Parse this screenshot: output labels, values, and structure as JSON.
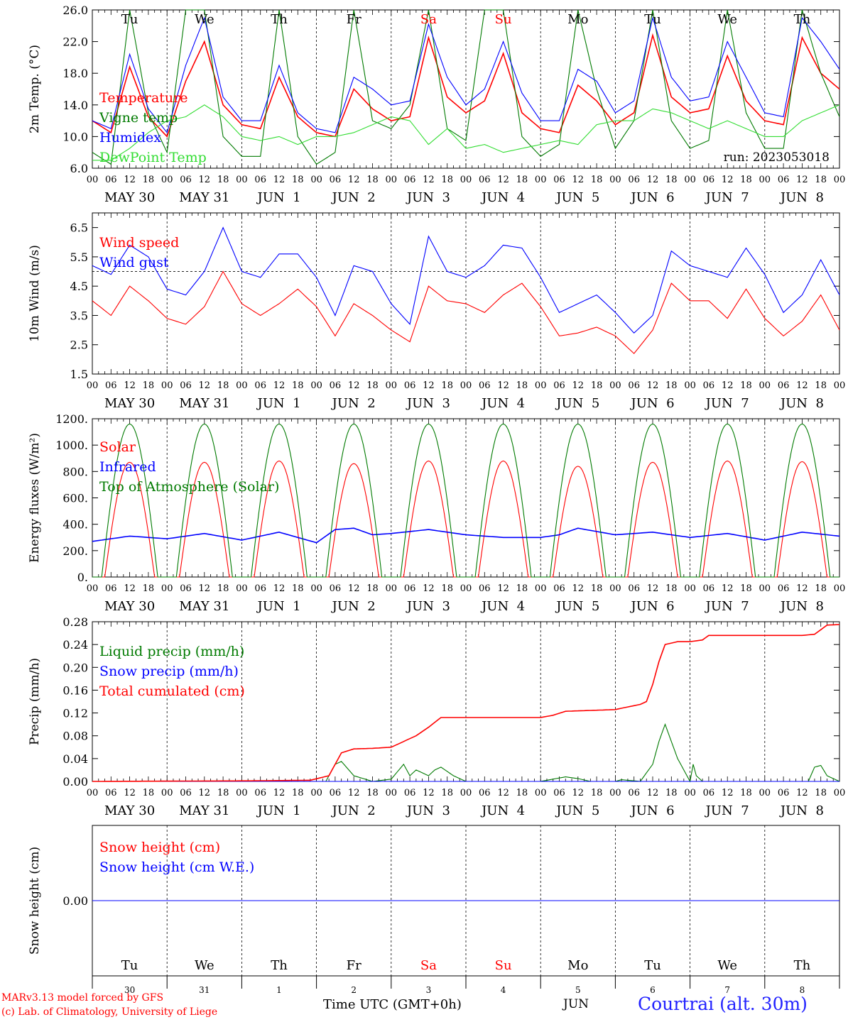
{
  "days": {
    "names": [
      "Tu",
      "We",
      "Th",
      "Fr",
      "Sa",
      "Su",
      "Mo",
      "Tu",
      "We",
      "Th"
    ],
    "dates": [
      "MAY 30",
      "MAY 31",
      "JUN  1",
      "JUN  2",
      "JUN  3",
      "JUN  4",
      "JUN  5",
      "JUN  6",
      "JUN  7",
      "JUN  8"
    ],
    "nums": [
      "30",
      "31",
      "1",
      "2",
      "3",
      "4",
      "5",
      "6",
      "7",
      "8"
    ],
    "weekend_color": "#ff0000",
    "weekend_idx": [
      4,
      5
    ]
  },
  "hour_ticks": [
    "00",
    "06",
    "12",
    "18"
  ],
  "footer": {
    "credit1": "MARv3.13 model forced by GFS",
    "credit2": "(c) Lab. of Climatology, University of Liege",
    "time_label": "Time UTC (GMT+0h)",
    "month_label": "JUN",
    "station": "Courtrai (alt. 30m)"
  },
  "chart_data": [
    {
      "type": "line",
      "panel": "temperature",
      "ylabel": "2m Temp. (°C)",
      "ylim": [
        6,
        26
      ],
      "yticks": [
        "6.0",
        "10.0",
        "14.0",
        "18.0",
        "22.0",
        "26.0"
      ],
      "run_label": "run: 2023053018",
      "x_unit": "hours since MAY 30 00 UTC",
      "series": [
        {
          "name": "Temperature",
          "color": "#ff0000",
          "x": [
            0,
            6,
            12,
            18,
            24,
            30,
            36,
            42,
            48,
            54,
            60,
            66,
            72,
            78,
            84,
            90,
            96,
            102,
            108,
            114,
            120,
            126,
            132,
            138,
            144,
            150,
            156,
            162,
            168,
            174,
            180,
            186,
            192,
            198,
            204,
            210,
            216,
            222,
            228,
            234,
            240
          ],
          "y": [
            12.0,
            10.5,
            18.8,
            12.5,
            10.0,
            17.0,
            22.0,
            14.0,
            11.5,
            11.0,
            17.5,
            12.5,
            10.5,
            10.0,
            16.0,
            13.5,
            12.0,
            12.5,
            22.5,
            15.0,
            13.0,
            14.5,
            20.5,
            13.0,
            11.0,
            10.5,
            16.5,
            14.5,
            11.5,
            13.0,
            22.8,
            15.0,
            13.0,
            13.5,
            20.2,
            14.5,
            12.0,
            11.5,
            22.5,
            18.0,
            16.0
          ]
        },
        {
          "name": "Vigne temp",
          "color": "#007a00",
          "x": [
            0,
            6,
            12,
            18,
            24,
            30,
            36,
            42,
            48,
            54,
            60,
            66,
            72,
            78,
            84,
            90,
            96,
            102,
            108,
            114,
            120,
            126,
            132,
            138,
            144,
            150,
            156,
            162,
            168,
            174,
            180,
            186,
            192,
            198,
            204,
            210,
            216,
            222,
            228,
            234,
            240
          ],
          "y": [
            8.0,
            6.5,
            26.0,
            13.0,
            8.0,
            26.0,
            26.0,
            10.0,
            7.5,
            7.5,
            26.0,
            10.0,
            6.5,
            8.0,
            26.0,
            12.0,
            11.0,
            14.0,
            26.0,
            11.0,
            9.5,
            26.0,
            26.0,
            10.0,
            7.5,
            9.0,
            26.0,
            16.0,
            8.5,
            12.0,
            26.0,
            12.0,
            8.5,
            9.5,
            26.0,
            13.0,
            8.5,
            8.5,
            26.0,
            18.0,
            12.5
          ]
        },
        {
          "name": "Humidex",
          "color": "#0000ff",
          "x": [
            0,
            6,
            12,
            18,
            24,
            30,
            36,
            42,
            48,
            54,
            60,
            66,
            72,
            78,
            84,
            90,
            96,
            102,
            108,
            114,
            120,
            126,
            132,
            138,
            144,
            150,
            156,
            162,
            168,
            174,
            180,
            186,
            192,
            198,
            204,
            210,
            216,
            222,
            228,
            234,
            240
          ],
          "y": [
            12.0,
            11.0,
            20.4,
            13.5,
            10.5,
            19.0,
            25.0,
            15.0,
            12.0,
            12.0,
            19.0,
            13.0,
            11.0,
            10.5,
            17.5,
            16.0,
            14.0,
            14.5,
            24.2,
            17.5,
            14.0,
            16.0,
            22.0,
            15.5,
            12.0,
            12.0,
            18.5,
            17.0,
            13.0,
            14.5,
            25.0,
            17.5,
            14.5,
            15.0,
            22.0,
            17.5,
            13.0,
            12.5,
            25.0,
            22.0,
            18.5
          ]
        },
        {
          "name": "DewPoint Temp",
          "color": "#33dd33",
          "x": [
            0,
            6,
            12,
            18,
            24,
            30,
            36,
            42,
            48,
            54,
            60,
            66,
            72,
            78,
            84,
            90,
            96,
            102,
            108,
            114,
            120,
            126,
            132,
            138,
            144,
            150,
            156,
            162,
            168,
            174,
            180,
            186,
            192,
            198,
            204,
            210,
            216,
            222,
            228,
            234,
            240
          ],
          "y": [
            7.0,
            7.0,
            8.5,
            10.5,
            12.0,
            12.5,
            14.0,
            12.5,
            10.0,
            9.5,
            10.0,
            9.0,
            10.0,
            10.0,
            10.5,
            11.5,
            12.5,
            12.0,
            9.0,
            11.0,
            8.5,
            9.0,
            8.0,
            8.5,
            9.0,
            9.5,
            9.0,
            11.5,
            12.0,
            12.0,
            13.5,
            13.0,
            12.0,
            11.0,
            12.0,
            11.0,
            10.0,
            10.0,
            12.0,
            13.0,
            14.0
          ]
        }
      ]
    },
    {
      "type": "line",
      "panel": "wind",
      "ylabel": "10m Wind (m/s)",
      "ylim": [
        1.5,
        7.0
      ],
      "yticks": [
        "1.5",
        "2.5",
        "3.5",
        "4.5",
        "5.5",
        "6.5"
      ],
      "reference_line": 5.0,
      "x_unit": "hours since MAY 30 00 UTC",
      "series": [
        {
          "name": "Wind speed",
          "color": "#ff0000",
          "x": [
            0,
            6,
            12,
            18,
            24,
            30,
            36,
            42,
            48,
            54,
            60,
            66,
            72,
            78,
            84,
            90,
            96,
            102,
            108,
            114,
            120,
            126,
            132,
            138,
            144,
            150,
            156,
            162,
            168,
            174,
            180,
            186,
            192,
            198,
            204,
            210,
            216,
            222,
            228,
            234,
            240
          ],
          "y": [
            4.0,
            3.5,
            4.5,
            4.0,
            3.4,
            3.2,
            3.8,
            5.0,
            3.9,
            3.5,
            3.9,
            4.4,
            3.8,
            2.8,
            3.9,
            3.5,
            3.0,
            2.6,
            4.5,
            4.0,
            3.9,
            3.6,
            4.2,
            4.6,
            3.8,
            2.8,
            2.9,
            3.1,
            2.8,
            2.2,
            3.0,
            4.6,
            4.0,
            4.0,
            3.4,
            4.4,
            3.4,
            2.8,
            3.3,
            4.2,
            3.0
          ]
        },
        {
          "name": "Wind gust",
          "color": "#0000ff",
          "x": [
            0,
            6,
            12,
            18,
            24,
            30,
            36,
            42,
            48,
            54,
            60,
            66,
            72,
            78,
            84,
            90,
            96,
            102,
            108,
            114,
            120,
            126,
            132,
            138,
            144,
            150,
            156,
            162,
            168,
            174,
            180,
            186,
            192,
            198,
            204,
            210,
            216,
            222,
            228,
            234,
            240
          ],
          "y": [
            5.2,
            4.9,
            5.9,
            5.5,
            4.4,
            4.2,
            5.0,
            6.5,
            5.0,
            4.8,
            5.6,
            5.6,
            4.8,
            3.5,
            5.2,
            5.0,
            3.9,
            3.2,
            6.2,
            5.0,
            4.8,
            5.2,
            5.9,
            5.8,
            4.8,
            3.6,
            3.9,
            4.2,
            3.6,
            2.9,
            3.5,
            5.7,
            5.2,
            5.0,
            4.8,
            5.8,
            4.9,
            3.6,
            4.2,
            5.4,
            4.2
          ]
        }
      ]
    },
    {
      "type": "line",
      "panel": "energy",
      "ylabel": "Energy fluxes (W/m²)",
      "ylim": [
        0,
        1200
      ],
      "yticks": [
        "0.",
        "200.",
        "400.",
        "600.",
        "800.",
        "1000.",
        "1200."
      ],
      "x_unit": "hours since MAY 30 00 UTC",
      "series": [
        {
          "name": "Solar",
          "color": "#ff0000",
          "peaks": [
            870,
            870,
            880,
            860,
            880,
            880,
            840,
            870,
            880,
            875
          ],
          "sunrise_h": 4,
          "sunset_h": 20
        },
        {
          "name": "Infrared",
          "color": "#0000ff",
          "x": [
            0,
            12,
            24,
            36,
            48,
            60,
            72,
            78,
            84,
            90,
            96,
            108,
            120,
            132,
            144,
            150,
            156,
            168,
            180,
            192,
            204,
            216,
            228,
            240
          ],
          "y": [
            270,
            310,
            290,
            330,
            280,
            340,
            260,
            360,
            370,
            320,
            330,
            360,
            320,
            300,
            300,
            320,
            370,
            320,
            340,
            300,
            330,
            280,
            340,
            310
          ]
        },
        {
          "name": "Top of Atmosphere (Solar)",
          "color": "#007a00",
          "peaks": [
            1160,
            1160,
            1160,
            1160,
            1160,
            1160,
            1160,
            1160,
            1160,
            1160
          ],
          "sunrise_h": 3,
          "sunset_h": 21
        }
      ]
    },
    {
      "type": "line",
      "panel": "precip",
      "ylabel": "Precip (mm/h)",
      "ylim": [
        0,
        0.28
      ],
      "yticks": [
        "0.00",
        "0.04",
        "0.08",
        "0.12",
        "0.16",
        "0.20",
        "0.24",
        "0.28"
      ],
      "x_unit": "hours since MAY 30 00 UTC",
      "series": [
        {
          "name": "Liquid precip (mm/h)",
          "color": "#007a00",
          "x": [
            0,
            75,
            78,
            80,
            84,
            90,
            96,
            100,
            102,
            104,
            108,
            110,
            112,
            116,
            120,
            144,
            152,
            156,
            160,
            168,
            170,
            176,
            180,
            182,
            184,
            186,
            188,
            190,
            192,
            193,
            194,
            196,
            198,
            230,
            232,
            234,
            236,
            240
          ],
          "y": [
            0,
            0,
            0.03,
            0.035,
            0.01,
            0,
            0.004,
            0.03,
            0.01,
            0.02,
            0.01,
            0.02,
            0.025,
            0.01,
            0,
            0,
            0.008,
            0.005,
            0,
            0,
            0.003,
            0,
            0.03,
            0.07,
            0.1,
            0.07,
            0.04,
            0.02,
            0,
            0.03,
            0.01,
            0,
            0,
            0,
            0.025,
            0.028,
            0.01,
            0
          ]
        },
        {
          "name": "Snow precip (mm/h)",
          "color": "#0000ff",
          "x": [
            0,
            240
          ],
          "y": [
            0,
            0
          ]
        },
        {
          "name": "Total cumulated (cm)",
          "color": "#ff0000",
          "x": [
            0,
            50,
            70,
            76,
            80,
            84,
            90,
            96,
            100,
            104,
            108,
            112,
            120,
            144,
            148,
            152,
            168,
            176,
            178,
            180,
            182,
            184,
            188,
            192,
            196,
            198,
            200,
            216,
            228,
            232,
            236,
            240
          ],
          "y": [
            0,
            0.001,
            0.002,
            0.01,
            0.05,
            0.057,
            0.058,
            0.06,
            0.07,
            0.08,
            0.095,
            0.112,
            0.112,
            0.112,
            0.116,
            0.123,
            0.126,
            0.135,
            0.14,
            0.17,
            0.21,
            0.24,
            0.245,
            0.245,
            0.248,
            0.256,
            0.256,
            0.256,
            0.256,
            0.258,
            0.274,
            0.275
          ]
        }
      ]
    },
    {
      "type": "line",
      "panel": "snow",
      "ylabel": "Snow height (cm)",
      "ylim": [
        -1,
        1
      ],
      "yticks": [
        "0.00"
      ],
      "x_unit": "hours since MAY 30 00 UTC",
      "series": [
        {
          "name": "Snow height (cm)",
          "color": "#ff0000",
          "x": [
            0,
            240
          ],
          "y": [
            0,
            0
          ]
        },
        {
          "name": "Snow height (cm W.E.)",
          "color": "#0000ff",
          "x": [
            0,
            240
          ],
          "y": [
            0,
            0
          ]
        }
      ]
    }
  ]
}
